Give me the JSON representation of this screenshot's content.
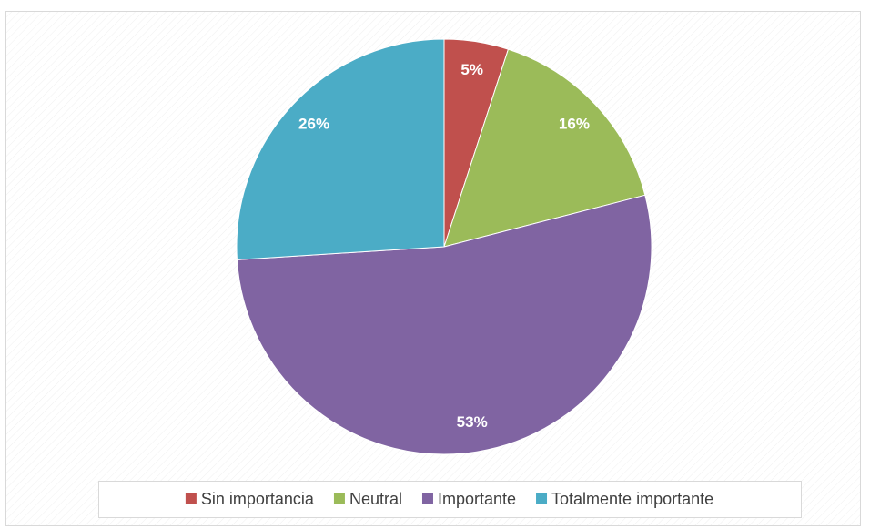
{
  "chart_data": {
    "type": "pie",
    "categories": [
      "Sin importancia",
      "Neutral",
      "Importante",
      "Totalmente importante"
    ],
    "values": [
      5,
      16,
      53,
      26
    ],
    "value_labels": [
      "5%",
      "16%",
      "53%",
      "26%"
    ],
    "colors": [
      "#c0504d",
      "#9bbb59",
      "#8064a2",
      "#4bacc6"
    ],
    "legend": "bottom"
  }
}
